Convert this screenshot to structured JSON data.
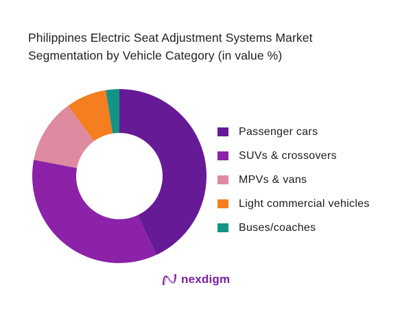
{
  "title": {
    "line1": "Philippines Electric Seat Adjustment Systems Market",
    "line2": "Segmentation by Vehicle Category (in value %)"
  },
  "chart_data": {
    "type": "pie",
    "subtype": "donut",
    "title": "Philippines Electric Seat Adjustment Systems Market Segmentation by Vehicle Category (in value %)",
    "categories": [
      "Passenger cars",
      "SUVs & crossovers",
      "MPVs & vans",
      "Light commercial vehicles",
      "Buses/coaches"
    ],
    "values": [
      43,
      35,
      12,
      7.5,
      2.5
    ],
    "colors": [
      "#661a96",
      "#8b22a8",
      "#de8aa0",
      "#f47e20",
      "#139485"
    ],
    "legend_position": "right",
    "start_angle_deg": 0,
    "direction": "clockwise",
    "data_labels": false
  },
  "legend": {
    "items": [
      {
        "label": "Passenger cars",
        "color": "#661a96"
      },
      {
        "label": "SUVs & crossovers",
        "color": "#8b22a8"
      },
      {
        "label": "MPVs & vans",
        "color": "#de8aa0"
      },
      {
        "label": "Light commercial vehicles",
        "color": "#f47e20"
      },
      {
        "label": "Buses/coaches",
        "color": "#139485"
      }
    ]
  },
  "branding": {
    "logo_text": "nexdigm",
    "logo_color": "#7a1fa2"
  }
}
